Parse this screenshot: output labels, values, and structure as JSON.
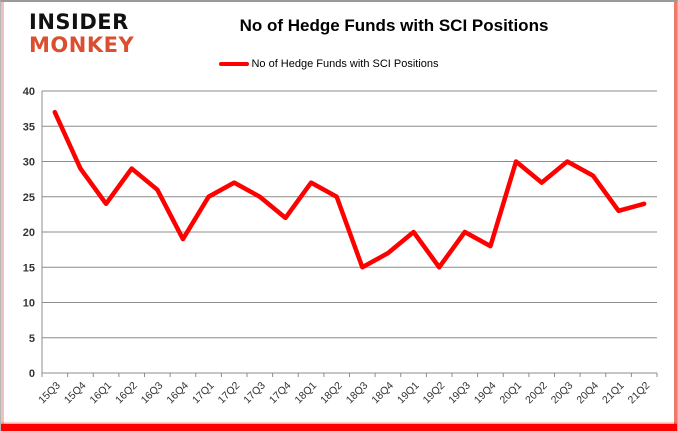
{
  "logo": {
    "line1": "INSIDER",
    "line2": "MONKEY"
  },
  "header": {
    "title": "No of Hedge Funds with SCI Positions"
  },
  "legend": {
    "label": "No of Hedge Funds with SCI Positions"
  },
  "colors": {
    "series": "#ff0000",
    "grid": "#8c8c8c",
    "axis_text": "#333333",
    "logo_accent": "#d94f30",
    "frame_bottom": "#ff0000"
  },
  "chart_data": {
    "type": "line",
    "title": "No of Hedge Funds with SCI Positions",
    "categories": [
      "15Q3",
      "15Q4",
      "16Q1",
      "16Q2",
      "16Q3",
      "16Q4",
      "17Q1",
      "17Q2",
      "17Q3",
      "17Q4",
      "18Q1",
      "18Q2",
      "18Q3",
      "18Q4",
      "19Q1",
      "19Q2",
      "19Q3",
      "19Q4",
      "20Q1",
      "20Q2",
      "20Q3",
      "20Q4",
      "21Q1",
      "21Q2"
    ],
    "series": [
      {
        "name": "No of Hedge Funds with SCI Positions",
        "color": "#ff0000",
        "values": [
          37,
          29,
          24,
          29,
          26,
          19,
          25,
          27,
          25,
          22,
          27,
          25,
          15,
          17,
          20,
          15,
          20,
          18,
          30,
          27,
          30,
          28,
          23,
          24
        ]
      }
    ],
    "xlabel": "",
    "ylabel": "",
    "ylim": [
      0,
      40
    ],
    "ytick_step": 5,
    "grid": true,
    "legend_position": "top"
  }
}
